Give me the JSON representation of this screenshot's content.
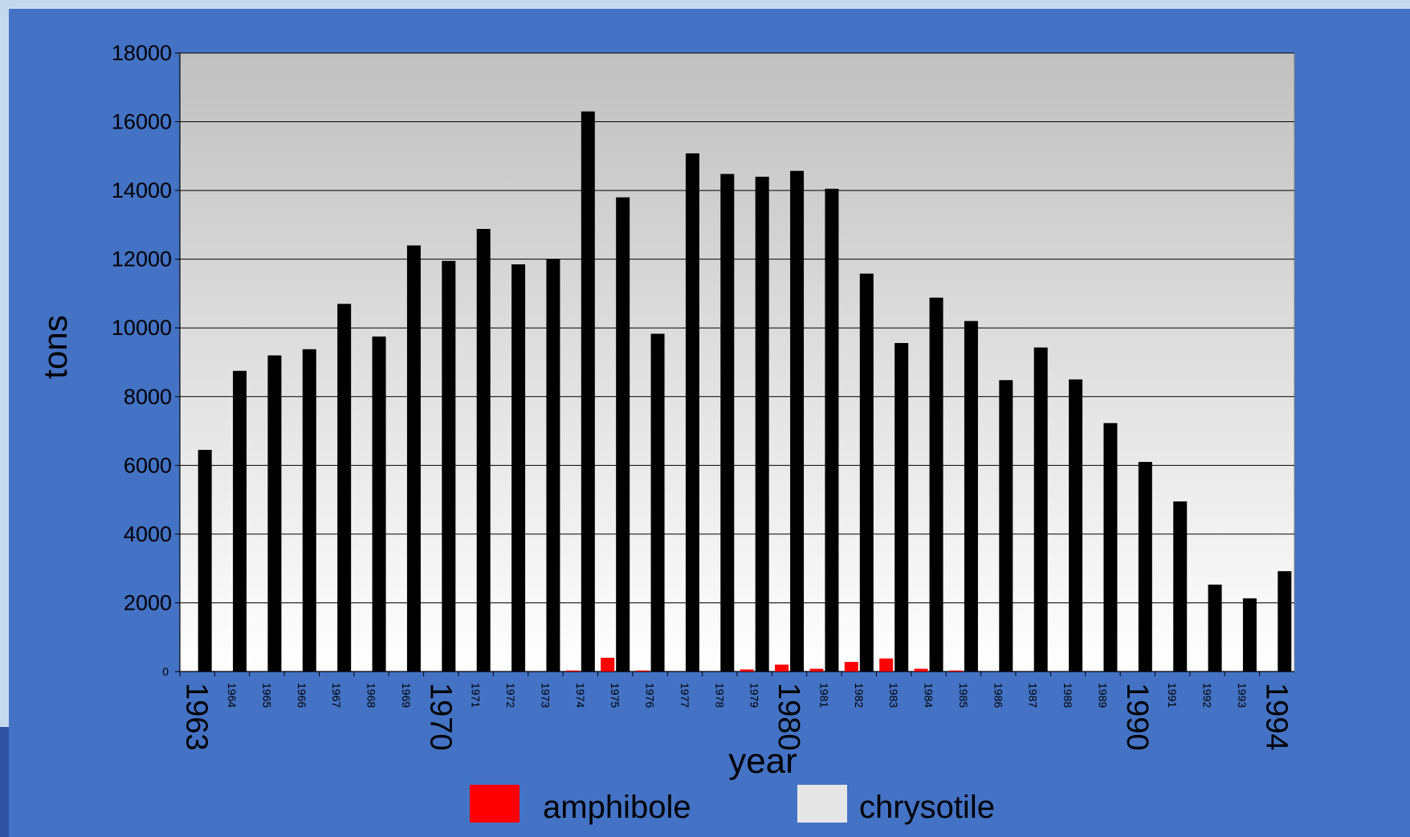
{
  "colors": {
    "slide_border": "#c6d9ec",
    "slide_bg": "#4472c4",
    "plot_top": "#c0c0c0",
    "plot_bottom": "#ffffff",
    "gridline": "#000000",
    "bar_main": "#000000",
    "bar_amphibole": "#ff0000",
    "chrysotile_swatch": "#e6e6e6"
  },
  "chart_data": {
    "type": "bar",
    "xlabel": "year",
    "ylabel": "tons",
    "ylim": [
      0,
      18000
    ],
    "yticks": [
      0,
      2000,
      4000,
      6000,
      8000,
      10000,
      12000,
      14000,
      16000,
      18000
    ],
    "ytick_labels": [
      "0",
      "2000",
      "4000",
      "6000",
      "8000",
      "10000",
      "12000",
      "14000",
      "16000",
      "18000"
    ],
    "grid": true,
    "legend_position": "bottom",
    "categories": [
      "1963",
      "1964",
      "1965",
      "1966",
      "1967",
      "1968",
      "1969",
      "1970",
      "1971",
      "1972",
      "1973",
      "1974",
      "1975",
      "1976",
      "1977",
      "1978",
      "1979",
      "1980",
      "1981",
      "1982",
      "1983",
      "1984",
      "1985",
      "1986",
      "1987",
      "1988",
      "1989",
      "1990",
      "1991",
      "1992",
      "1993",
      "1994"
    ],
    "emphasized_categories": [
      "1963",
      "1970",
      "1980",
      "1990",
      "1994"
    ],
    "series": [
      {
        "name": "amphibole",
        "values": [
          0,
          0,
          0,
          0,
          0,
          0,
          0,
          0,
          0,
          0,
          0,
          30,
          400,
          30,
          0,
          0,
          60,
          200,
          80,
          280,
          380,
          80,
          30,
          0,
          0,
          0,
          0,
          0,
          0,
          0,
          0,
          0
        ]
      },
      {
        "values": [
          6450,
          8750,
          9200,
          9380,
          10700,
          9750,
          12400,
          11950,
          12880,
          11850,
          12000,
          16300,
          13800,
          9830,
          15080,
          14480,
          14400,
          14570,
          14050,
          11580,
          9560,
          10880,
          10200,
          8480,
          9430,
          8500,
          7230,
          6100,
          4950,
          2530,
          2130,
          2920
        ]
      }
    ],
    "legend": [
      {
        "label": "amphibole",
        "color": "#ff0000"
      },
      {
        "label": "chrysotile",
        "color": "#e6e6e6"
      }
    ]
  }
}
